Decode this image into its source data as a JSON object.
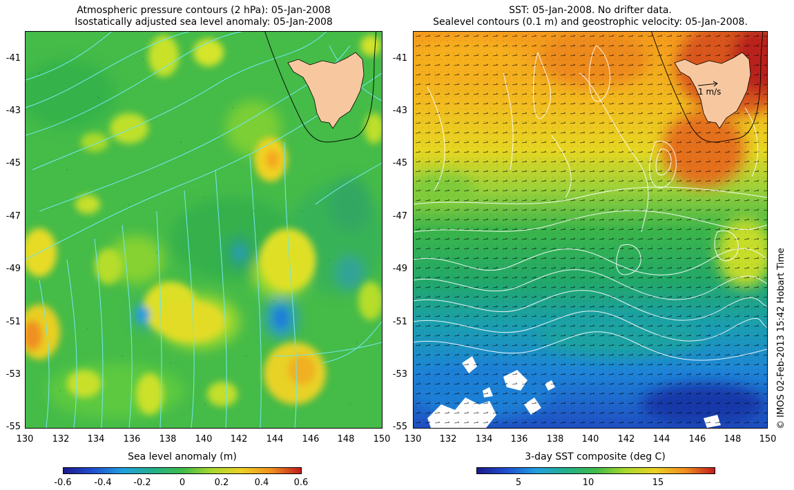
{
  "left_panel": {
    "title_line1": "Atmospheric pressure contours (2 hPa): 05-Jan-2008",
    "title_line2": "Isostatically adjusted sea level anomaly: 05-Jan-2008",
    "y_ticks": [
      "-41",
      "-43",
      "-45",
      "-47",
      "-49",
      "-51",
      "-53",
      "-55"
    ],
    "x_ticks": [
      "130",
      "132",
      "134",
      "136",
      "138",
      "140",
      "142",
      "144",
      "146",
      "148",
      "150"
    ],
    "colorbar": {
      "title": "Sea level anomaly (m)",
      "labels": [
        "-0.6",
        "-0.4",
        "-0.2",
        "0",
        "0.2",
        "0.4",
        "0.6"
      ],
      "range": [
        -0.6,
        0.6
      ]
    },
    "colors": {
      "base": "#4ec24a",
      "contour": "#6fe6e6",
      "land": "#f7c8a0"
    }
  },
  "right_panel": {
    "title_line1": "SST: 05-Jan-2008. No drifter data.",
    "title_line2": "Sealevel contours (0.1 m) and geostrophic velocity: 05-Jan-2008.",
    "y_ticks": [
      "-41",
      "-43",
      "-45",
      "-47",
      "-49",
      "-51",
      "-53",
      "-55"
    ],
    "x_ticks": [
      "130",
      "132",
      "134",
      "136",
      "138",
      "140",
      "142",
      "144",
      "146",
      "148",
      "150"
    ],
    "scale_label": "1 m/s",
    "colorbar": {
      "title": "3-day SST composite (deg C)",
      "labels": [
        "5",
        "10",
        "15"
      ],
      "range": [
        2,
        19
      ]
    },
    "colors": {
      "land": "#f7c8a0",
      "contour": "#ffffff"
    }
  },
  "credit": "© IMOS 02-Feb-2013 15:42 Hobart Time"
}
